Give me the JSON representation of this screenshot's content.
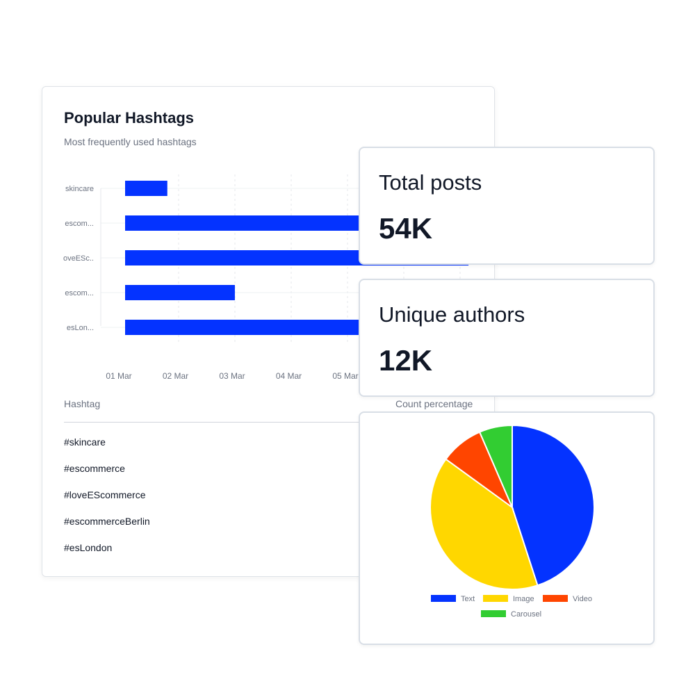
{
  "hashtags_card": {
    "title": "Popular Hashtags",
    "subtitle": "Most frequently used hashtags",
    "table": {
      "columns": [
        "Hashtag",
        "Count percentage"
      ],
      "rows": [
        "#skincare",
        "#escommerce",
        "#loveEScommerce",
        "#escommerceBerlin",
        "#esLondon"
      ]
    }
  },
  "stats": {
    "total_posts": {
      "label": "Total posts",
      "value": "54K"
    },
    "unique_authors": {
      "label": "Unique authors",
      "value": "12K"
    }
  },
  "chart_data": [
    {
      "type": "bar",
      "orientation": "horizontal",
      "categories": [
        "skincare",
        "escom...",
        "oveESc..",
        "escom...",
        "esLon..."
      ],
      "x_tick_labels": [
        "01 Mar",
        "02 Mar",
        "03 Mar",
        "04 Mar",
        "05 Mar"
      ],
      "values": [
        0.75,
        4.2,
        6.1,
        1.95,
        4.2
      ],
      "xlim": [
        0,
        6.4
      ],
      "grid": true,
      "color": "#0433ff"
    },
    {
      "type": "pie",
      "labels": [
        "Text",
        "Image",
        "Video",
        "Carousel"
      ],
      "values": [
        45,
        40,
        8.5,
        6.5
      ],
      "colors": [
        "#0433ff",
        "#ffd700",
        "#ff4500",
        "#32cd32"
      ],
      "legend": "bottom"
    }
  ]
}
